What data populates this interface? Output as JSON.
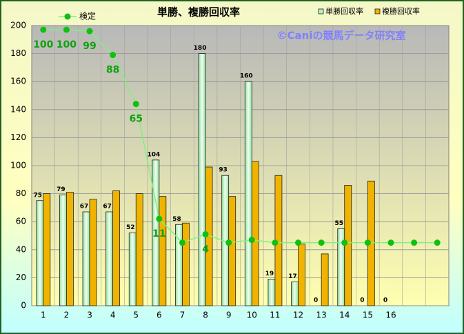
{
  "chart_data": {
    "type": "bar",
    "title": "単勝、複勝回収率",
    "annotation": "©Caniの競馬データ研究室",
    "categories": [
      "1",
      "2",
      "3",
      "4",
      "5",
      "6",
      "7",
      "8",
      "9",
      "10",
      "11",
      "12",
      "13",
      "14",
      "15",
      "16",
      null,
      null
    ],
    "series": [
      {
        "name": "単勝回収率",
        "type": "bar",
        "color": "#b8f0c0",
        "show_values": true,
        "values": [
          75,
          79,
          67,
          67,
          52,
          104,
          58,
          180,
          93,
          160,
          19,
          17,
          0,
          55,
          0,
          0,
          null,
          null
        ]
      },
      {
        "name": "複勝回収率",
        "type": "bar",
        "color": "#f0b400",
        "values": [
          80,
          81,
          76,
          82,
          80,
          78,
          59,
          99,
          78,
          103,
          93,
          44,
          37,
          86,
          89,
          null,
          null,
          null
        ]
      },
      {
        "name": "検定",
        "type": "line",
        "color": "#80f080",
        "marker_color": "#10c010",
        "values": [
          197,
          197,
          196,
          179,
          144,
          62,
          45,
          51,
          45,
          47,
          45,
          45,
          45,
          45,
          45,
          45,
          45,
          45
        ],
        "value_labels": [
          "100",
          "100",
          "99",
          "88",
          "65",
          "11",
          null,
          "4",
          null,
          null,
          null,
          null,
          null,
          null,
          null,
          null,
          null,
          null
        ]
      }
    ],
    "ylim": [
      0,
      200
    ],
    "yticks": [
      0,
      20,
      40,
      60,
      80,
      100,
      120,
      140,
      160,
      180,
      200
    ],
    "grid": true
  }
}
